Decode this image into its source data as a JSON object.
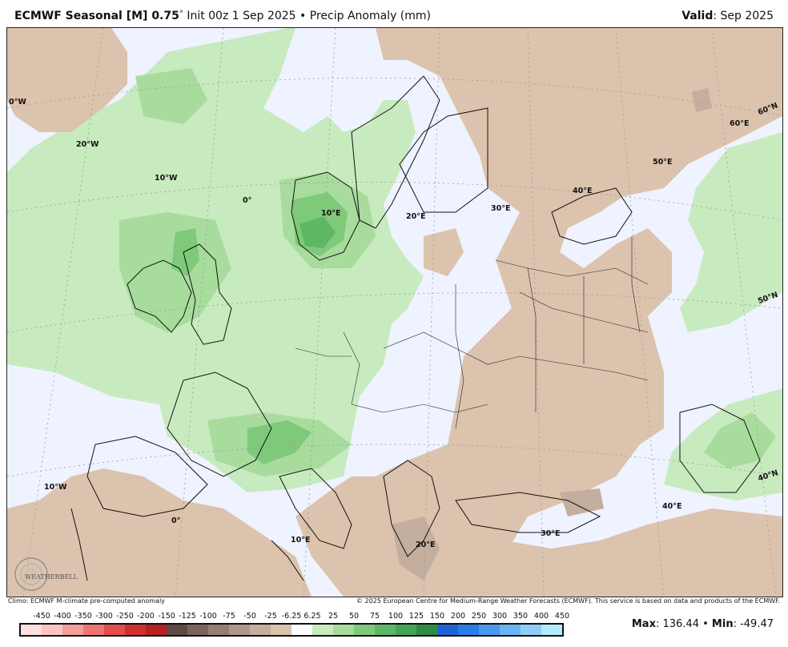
{
  "header": {
    "model": "ECMWF Seasonal [M] 0.75",
    "degree": "°",
    "init": "Init 00z 1 Sep 2025",
    "bullet": "•",
    "field": "Precip Anomaly (mm)",
    "valid_label": "Valid",
    "valid_value": ": Sep 2025"
  },
  "credits": {
    "left": "Climo: ECMWF M-climate pre-computed anomaly",
    "right": "© 2025 European Centre for Medium-Range Weather Forecasts (ECMWF). This service is based on data and products of the ECMWF."
  },
  "logo": {
    "text": "WEATHERBELL"
  },
  "stats": {
    "max_label": "Max",
    "max_value": ": 136.44",
    "separator": "•",
    "min_label": "Min",
    "min_value": ": -49.47"
  },
  "gridlabels": {
    "lon_0w_top": "0°W",
    "lon_20w": "20°W",
    "lon_10w_top": "10°W",
    "lon_0_mid": "0°",
    "lon_10e_mid": "10°E",
    "lon_20e_mid": "20°E",
    "lon_30e_mid": "30°E",
    "lon_40e_mid": "40°E",
    "lon_50e": "50°E",
    "lon_60e": "60°E",
    "lat_60n": "60°N",
    "lat_50n": "50°N",
    "lat_40n": "40°N",
    "lon_10w_bot": "10°W",
    "lon_0_bot": "0°",
    "lon_10e_bot": "10°E",
    "lon_20e_bot": "20°E",
    "lon_30e_bot": "30°E",
    "lon_40e_bot": "40°E"
  },
  "legend": {
    "labels": [
      "-450",
      "-400",
      "-350",
      "-300",
      "-250",
      "-200",
      "-150",
      "-125",
      "-100",
      "-75",
      "-50",
      "-25",
      "-6.25",
      "6.25",
      "25",
      "50",
      "75",
      "100",
      "125",
      "150",
      "200",
      "250",
      "300",
      "350",
      "400",
      "450"
    ],
    "colors": [
      "#fde0e0",
      "#fbc4c4",
      "#f59c9c",
      "#ee7474",
      "#e24d4d",
      "#cf3131",
      "#b52020",
      "#5e4a44",
      "#7a645c",
      "#957e73",
      "#ad978a",
      "#c4ae9e",
      "#dcc3ad",
      "#ffffff",
      "#c8eabf",
      "#a8dc9c",
      "#7fc97a",
      "#5cb864",
      "#43a356",
      "#2f8a44",
      "#1f62d6",
      "#2b7ce6",
      "#4b98ee",
      "#6cb3f3",
      "#8dcef7",
      "#b4ecfb"
    ]
  }
}
